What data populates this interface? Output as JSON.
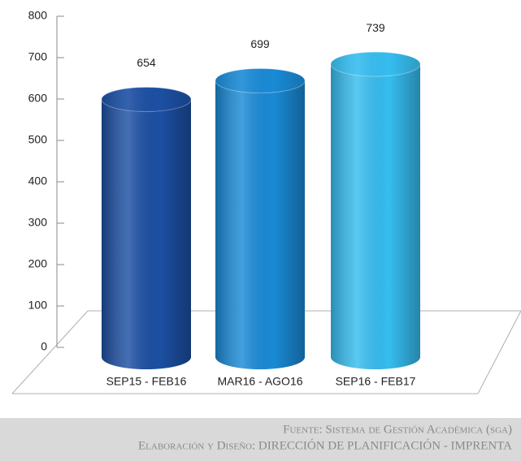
{
  "chart_data": {
    "type": "bar",
    "categories": [
      "SEP15 - FEB16",
      "MAR16 - AGO16",
      "SEP16 - FEB17"
    ],
    "values": [
      654,
      699,
      739
    ],
    "colors": [
      "#1c4fa3",
      "#1a8ad6",
      "#36bdf0"
    ],
    "ylim": [
      0,
      800
    ],
    "yticks": [
      0,
      100,
      200,
      300,
      400,
      500,
      600,
      700,
      800
    ],
    "source": [
      "Fuente: Sistema de Gestión Académica (sga)",
      "Elaboración y Diseño: DIRECCIÓN DE PLANIFICACIÓN - IMPRENTA"
    ]
  }
}
